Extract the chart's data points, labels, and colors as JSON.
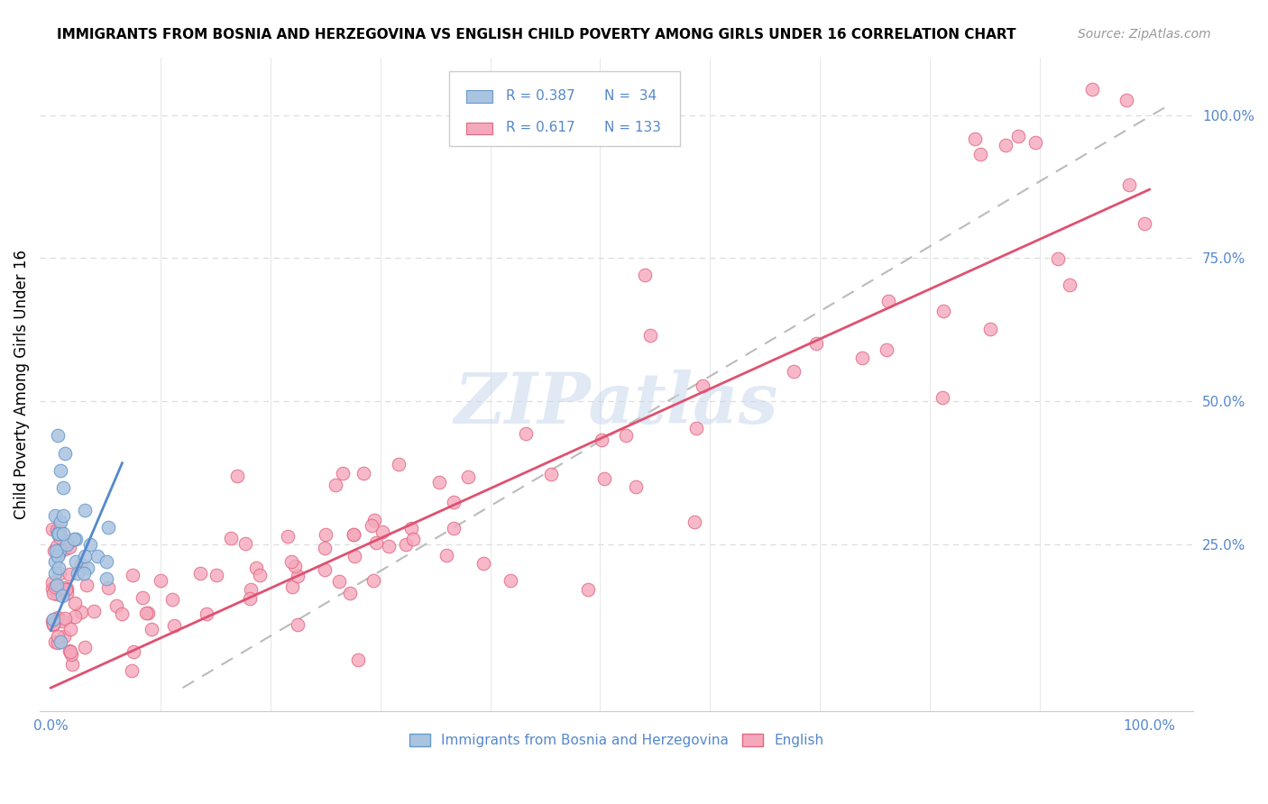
{
  "title": "IMMIGRANTS FROM BOSNIA AND HERZEGOVINA VS ENGLISH CHILD POVERTY AMONG GIRLS UNDER 16 CORRELATION CHART",
  "source": "Source: ZipAtlas.com",
  "ylabel": "Child Poverty Among Girls Under 16",
  "legend_label1": "Immigrants from Bosnia and Herzegovina",
  "legend_label2": "English",
  "R1": 0.387,
  "N1": 34,
  "R2": 0.617,
  "N2": 133,
  "color_blue": "#aac4e0",
  "color_pink": "#f5a8bc",
  "edge_color_blue": "#6699cc",
  "edge_color_pink": "#e06880",
  "line_color_blue": "#5588cc",
  "line_color_pink": "#e05070",
  "dash_color": "#bbbbbb",
  "grid_color": "#dddddd",
  "watermark_color": "#c8d8ec",
  "tick_color": "#5588cc",
  "title_fontsize": 11,
  "source_fontsize": 10,
  "axis_fontsize": 11,
  "ylabel_fontsize": 12
}
